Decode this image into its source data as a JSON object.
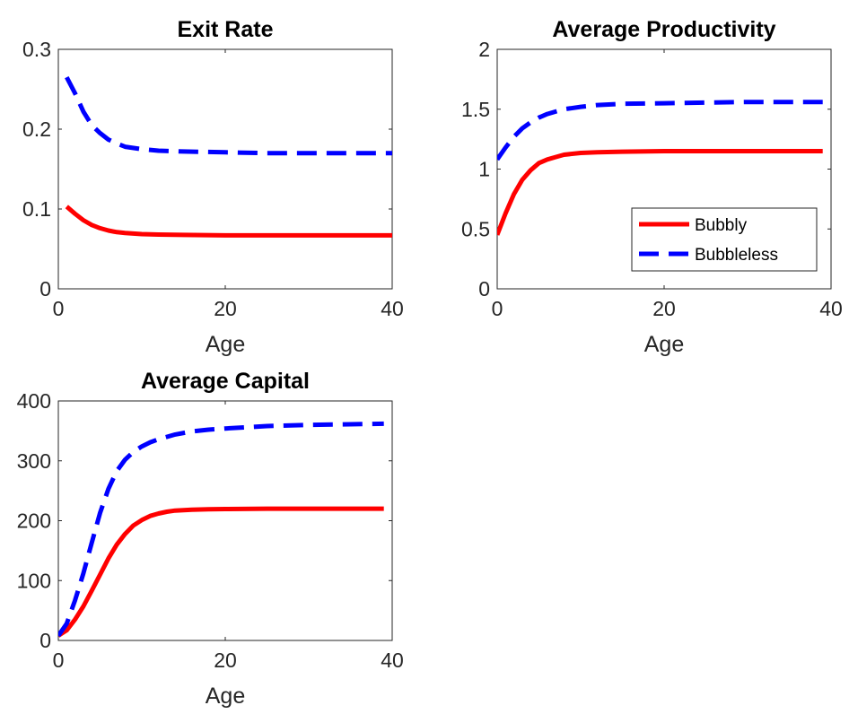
{
  "chart_data": [
    {
      "type": "line",
      "title": "Exit Rate",
      "xlabel": "Age",
      "ylabel": "",
      "xlim": [
        0,
        40
      ],
      "ylim": [
        0,
        0.3
      ],
      "xticks": [
        "0",
        "20",
        "40"
      ],
      "yticks": [
        "0",
        "0.1",
        "0.2",
        "0.3"
      ],
      "grid": false,
      "series": [
        {
          "name": "Bubbly",
          "color": "#ff0000",
          "style": "solid",
          "x": [
            1,
            2,
            3,
            4,
            5,
            6,
            7,
            8,
            10,
            12,
            15,
            20,
            25,
            30,
            35,
            40
          ],
          "y": [
            0.103,
            0.094,
            0.086,
            0.08,
            0.076,
            0.073,
            0.071,
            0.07,
            0.0685,
            0.068,
            0.0675,
            0.067,
            0.067,
            0.067,
            0.067,
            0.067
          ]
        },
        {
          "name": "Bubbleless",
          "color": "#0000ff",
          "style": "dashed",
          "x": [
            1,
            2,
            3,
            4,
            5,
            6,
            7,
            8,
            10,
            12,
            15,
            20,
            25,
            30,
            35,
            40
          ],
          "y": [
            0.265,
            0.245,
            0.222,
            0.205,
            0.195,
            0.187,
            0.182,
            0.178,
            0.175,
            0.173,
            0.172,
            0.171,
            0.17,
            0.17,
            0.17,
            0.17
          ]
        }
      ]
    },
    {
      "type": "line",
      "title": "Average Productivity",
      "xlabel": "Age",
      "ylabel": "",
      "xlim": [
        0,
        40
      ],
      "ylim": [
        0,
        2
      ],
      "xticks": [
        "0",
        "20",
        "40"
      ],
      "yticks": [
        "0",
        "0.5",
        "1",
        "1.5",
        "2"
      ],
      "grid": false,
      "legend": {
        "placement": "bottom-right",
        "entries": [
          "Bubbly",
          "Bubbleless"
        ]
      },
      "series": [
        {
          "name": "Bubbly",
          "color": "#ff0000",
          "style": "solid",
          "x": [
            0,
            1,
            2,
            3,
            4,
            5,
            6,
            7,
            8,
            10,
            12,
            15,
            20,
            25,
            30,
            35,
            39
          ],
          "y": [
            0.45,
            0.63,
            0.79,
            0.91,
            0.99,
            1.05,
            1.08,
            1.1,
            1.12,
            1.135,
            1.14,
            1.145,
            1.15,
            1.15,
            1.15,
            1.15,
            1.15
          ]
        },
        {
          "name": "Bubbleless",
          "color": "#0000ff",
          "style": "dashed",
          "x": [
            0,
            1,
            2,
            3,
            4,
            5,
            6,
            7,
            8,
            10,
            12,
            15,
            20,
            25,
            30,
            35,
            39
          ],
          "y": [
            1.08,
            1.18,
            1.27,
            1.34,
            1.39,
            1.43,
            1.46,
            1.48,
            1.5,
            1.52,
            1.535,
            1.545,
            1.55,
            1.555,
            1.56,
            1.56,
            1.56
          ]
        }
      ]
    },
    {
      "type": "line",
      "title": "Average Capital",
      "xlabel": "Age",
      "ylabel": "",
      "xlim": [
        0,
        40
      ],
      "ylim": [
        0,
        400
      ],
      "xticks": [
        "0",
        "20",
        "40"
      ],
      "yticks": [
        "0",
        "100",
        "200",
        "300",
        "400"
      ],
      "grid": false,
      "series": [
        {
          "name": "Bubbly",
          "color": "#ff0000",
          "style": "solid",
          "x": [
            0,
            1,
            2,
            3,
            4,
            5,
            6,
            7,
            8,
            9,
            10,
            11,
            12,
            13,
            14,
            16,
            18,
            20,
            25,
            30,
            35,
            39
          ],
          "y": [
            8,
            17,
            35,
            57,
            83,
            110,
            137,
            160,
            178,
            192,
            201,
            208,
            212,
            215,
            217,
            218.5,
            219,
            219.5,
            220,
            220,
            220,
            220
          ]
        },
        {
          "name": "Bubbleless",
          "color": "#0000ff",
          "style": "dashed",
          "x": [
            0,
            1,
            2,
            3,
            4,
            5,
            6,
            7,
            8,
            9,
            10,
            11,
            12,
            14,
            16,
            18,
            20,
            25,
            30,
            35,
            39
          ],
          "y": [
            8,
            28,
            67,
            112,
            163,
            213,
            253,
            283,
            302,
            315,
            324,
            331,
            336,
            344,
            349,
            352,
            354,
            358,
            360,
            361,
            362
          ]
        }
      ]
    }
  ]
}
